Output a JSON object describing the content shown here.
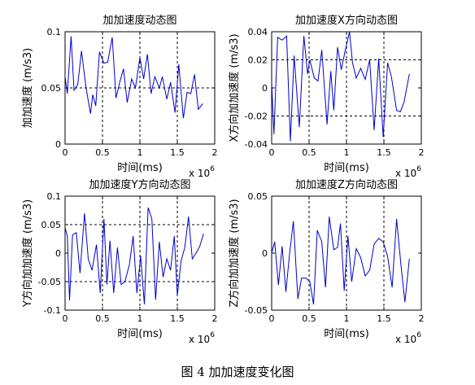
{
  "caption": "图 4  加加速度变化图",
  "chart_data": [
    {
      "type": "line",
      "title": "加加速度动态图",
      "xlabel": "时间(ms)",
      "ylabel": "加加速度 (m/s3)",
      "x_exponent": "x 10",
      "x_exponent_power": "6",
      "xlim": [
        0,
        2
      ],
      "ylim": [
        0,
        0.1
      ],
      "xticks": [
        "0",
        "0.5",
        "1",
        "1.5",
        "2"
      ],
      "yticks": [
        "0",
        "0.05",
        "0.1"
      ],
      "grid_x": [
        0.5,
        1,
        1.5
      ],
      "grid_y": [
        0.05
      ],
      "series": [
        {
          "color": "#0000cc",
          "x": [
            0,
            0.03,
            0.08,
            0.12,
            0.17,
            0.22,
            0.28,
            0.34,
            0.37,
            0.41,
            0.46,
            0.52,
            0.57,
            0.63,
            0.68,
            0.73,
            0.78,
            0.83,
            0.89,
            0.94,
            1.0,
            1.05,
            1.1,
            1.15,
            1.2,
            1.26,
            1.3,
            1.36,
            1.41,
            1.47,
            1.52,
            1.58,
            1.63,
            1.68,
            1.73,
            1.78,
            1.84
          ],
          "y": [
            0.06,
            0.045,
            0.096,
            0.048,
            0.053,
            0.083,
            0.05,
            0.027,
            0.044,
            0.034,
            0.082,
            0.072,
            0.073,
            0.095,
            0.041,
            0.055,
            0.067,
            0.037,
            0.058,
            0.05,
            0.077,
            0.058,
            0.08,
            0.045,
            0.06,
            0.05,
            0.06,
            0.04,
            0.055,
            0.028,
            0.071,
            0.023,
            0.046,
            0.045,
            0.062,
            0.031,
            0.036
          ]
        }
      ]
    },
    {
      "type": "line",
      "title": "加加速度X方向动态图",
      "xlabel": "时间(ms)",
      "ylabel": "X方向加加速度 (m/s3)",
      "x_exponent": "x 10",
      "x_exponent_power": "6",
      "xlim": [
        0,
        2
      ],
      "ylim": [
        -0.04,
        0.04
      ],
      "xticks": [
        "0",
        "0.5",
        "1",
        "1.5",
        "2"
      ],
      "yticks": [
        "-0.04",
        "-0.02",
        "0",
        "0.02",
        "0.04"
      ],
      "grid_x": [
        0.5,
        1,
        1.5
      ],
      "grid_y": [
        -0.02,
        0.02
      ],
      "series": [
        {
          "color": "#0000cc",
          "x": [
            0,
            0.03,
            0.08,
            0.14,
            0.2,
            0.25,
            0.3,
            0.37,
            0.43,
            0.48,
            0.51,
            0.57,
            0.62,
            0.67,
            0.74,
            0.79,
            0.83,
            0.88,
            0.93,
            0.98,
            1.04,
            1.08,
            1.13,
            1.19,
            1.25,
            1.31,
            1.37,
            1.43,
            1.49,
            1.55,
            1.6,
            1.67,
            1.72,
            1.77,
            1.84
          ],
          "y": [
            0.004,
            -0.033,
            0.036,
            0.034,
            0.037,
            -0.038,
            0.023,
            -0.028,
            0.037,
            0.01,
            0.02,
            0.007,
            0.005,
            0.027,
            -0.026,
            0.012,
            -0.016,
            0.029,
            0.013,
            0.026,
            0.04,
            0.018,
            0.007,
            0.014,
            0.006,
            0.02,
            -0.03,
            0.021,
            -0.035,
            0.018,
            0.008,
            -0.016,
            -0.017,
            -0.01,
            0.01
          ]
        }
      ]
    },
    {
      "type": "line",
      "title": "加加速度Y方向动态图",
      "xlabel": "时间(ms)",
      "ylabel": "Y方向加加速度 (m/s3)",
      "x_exponent": "x 10",
      "x_exponent_power": "6",
      "xlim": [
        0,
        2
      ],
      "ylim": [
        -0.1,
        0.1
      ],
      "xticks": [
        "0",
        "0.5",
        "1",
        "1.5",
        "2"
      ],
      "yticks": [
        "-0.1",
        "-0.05",
        "0",
        "0.05",
        "0.1"
      ],
      "grid_x": [
        0.5,
        1,
        1.5
      ],
      "grid_y": [
        -0.05,
        0.05
      ],
      "series": [
        {
          "color": "#0000cc",
          "x": [
            0,
            0.03,
            0.06,
            0.1,
            0.15,
            0.2,
            0.26,
            0.31,
            0.36,
            0.42,
            0.47,
            0.52,
            0.56,
            0.6,
            0.65,
            0.7,
            0.75,
            0.8,
            0.86,
            0.91,
            0.96,
            1.01,
            1.06,
            1.11,
            1.16,
            1.21,
            1.26,
            1.31,
            1.36,
            1.41,
            1.46,
            1.5,
            1.55,
            1.6,
            1.65,
            1.7,
            1.75,
            1.8,
            1.85
          ],
          "y": [
            0.045,
            0.03,
            -0.083,
            0.032,
            0.036,
            -0.035,
            0.07,
            -0.01,
            -0.03,
            0.015,
            -0.07,
            0.06,
            -0.055,
            0.022,
            -0.07,
            0.01,
            -0.055,
            -0.05,
            -0.02,
            0.03,
            -0.07,
            -0.005,
            -0.09,
            0.08,
            0.06,
            -0.082,
            0.02,
            -0.042,
            -0.01,
            -0.03,
            0.03,
            -0.074,
            -0.014,
            0.01,
            0.064,
            -0.01,
            0.0,
            0.012,
            0.034
          ]
        }
      ]
    },
    {
      "type": "line",
      "title": "加加速度Z方向动态图",
      "xlabel": "时间(ms)",
      "ylabel": "Z方向加加速度 (m/s3)",
      "x_exponent": "x 10",
      "x_exponent_power": "6",
      "xlim": [
        0,
        2
      ],
      "ylim": [
        -0.05,
        0.05
      ],
      "xticks": [
        "0",
        "0.5",
        "1",
        "1.5",
        "2"
      ],
      "yticks": [
        "-0.05",
        "0",
        "0.05"
      ],
      "grid_x": [
        0.5,
        1,
        1.5
      ],
      "grid_y": [],
      "series": [
        {
          "color": "#0000cc",
          "x": [
            0,
            0.04,
            0.09,
            0.14,
            0.19,
            0.24,
            0.29,
            0.35,
            0.4,
            0.46,
            0.51,
            0.56,
            0.61,
            0.67,
            0.72,
            0.77,
            0.83,
            0.88,
            0.92,
            0.97,
            1.02,
            1.07,
            1.13,
            1.19,
            1.25,
            1.31,
            1.37,
            1.43,
            1.49,
            1.55,
            1.61,
            1.67,
            1.73,
            1.78,
            1.84
          ],
          "y": [
            0.0,
            0.01,
            -0.028,
            0.006,
            -0.034,
            0.0,
            0.028,
            -0.04,
            -0.022,
            -0.022,
            -0.025,
            -0.045,
            0.02,
            0.01,
            -0.03,
            0.032,
            0.003,
            0.005,
            0.026,
            -0.033,
            0.015,
            -0.025,
            0.004,
            -0.004,
            -0.02,
            -0.015,
            0.008,
            0.013,
            0.01,
            -0.003,
            -0.03,
            0.03,
            -0.012,
            -0.043,
            -0.005
          ]
        }
      ]
    }
  ]
}
